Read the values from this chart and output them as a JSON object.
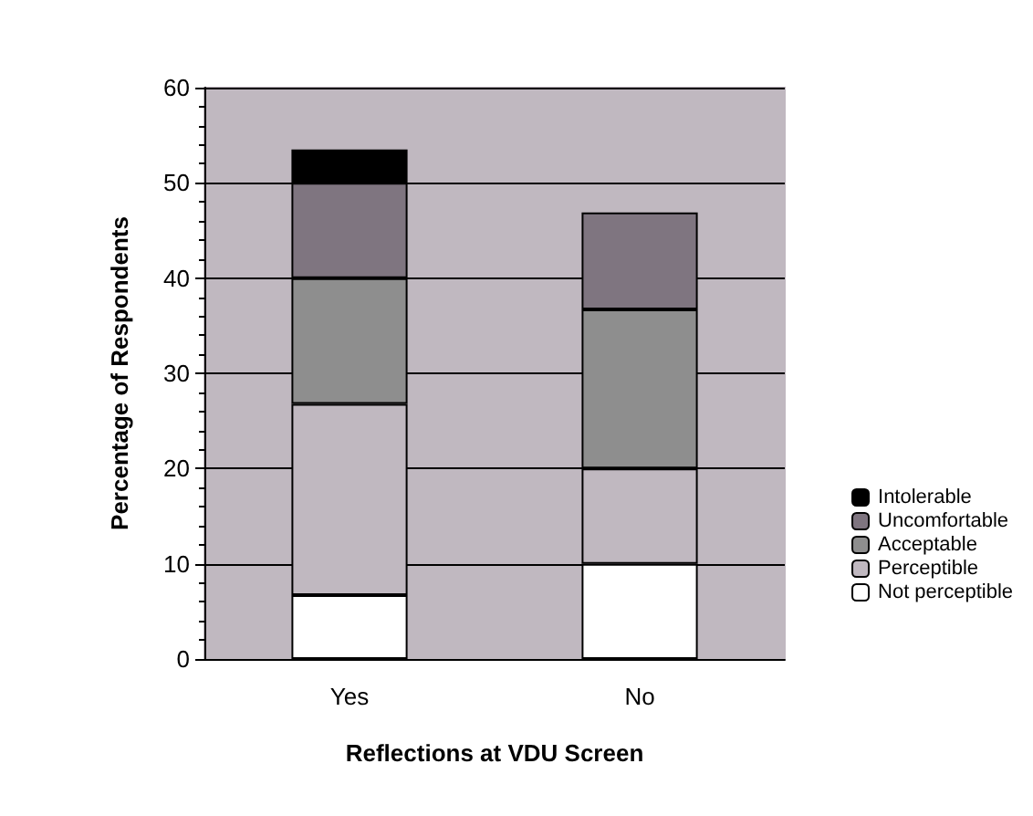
{
  "chart_data": {
    "type": "bar",
    "stacked": true,
    "xlabel": "Reflections at VDU Screen",
    "ylabel": "Percentage of Respondents",
    "categories": [
      "Yes",
      "No"
    ],
    "series": [
      {
        "name": "Not perceptible",
        "color": "#ffffff",
        "values": [
          6.7,
          10
        ]
      },
      {
        "name": "Perceptible",
        "color": "#c0b8c0",
        "values": [
          20.1,
          10
        ]
      },
      {
        "name": "Acceptable",
        "color": "#8e8e8e",
        "values": [
          13.2,
          16.7
        ]
      },
      {
        "name": "Uncomfortable",
        "color": "#7f7580",
        "values": [
          10,
          10.2
        ]
      },
      {
        "name": "Intolerable",
        "color": "#000000",
        "values": [
          3.5,
          null
        ]
      }
    ],
    "ylim": [
      0,
      60
    ],
    "yticks": [
      0,
      10,
      20,
      30,
      40,
      50,
      60
    ],
    "grid": "y",
    "legend": "right"
  }
}
